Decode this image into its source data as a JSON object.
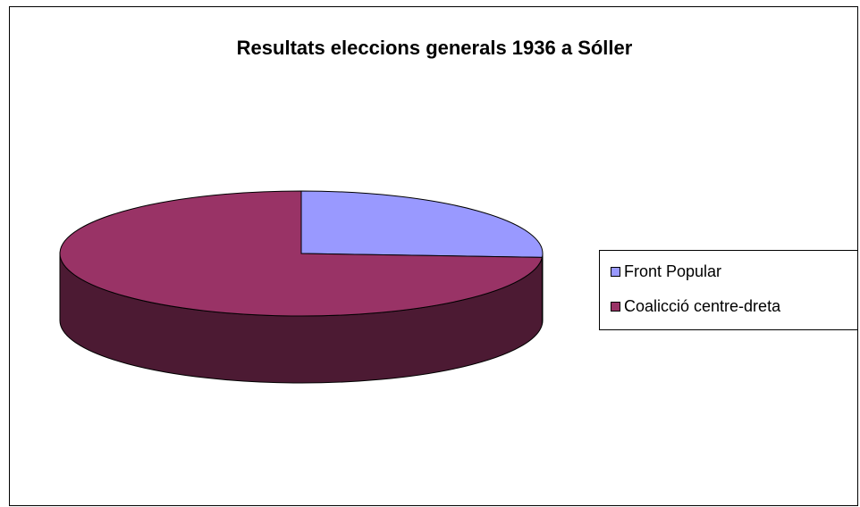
{
  "chart_data": {
    "type": "pie",
    "title": "Resultats eleccions generals 1936 a Sóller",
    "categories": [
      "Front Popular",
      "Coalicció centre-dreta"
    ],
    "values": [
      26,
      74
    ],
    "colors": [
      "#9999ff",
      "#993366"
    ],
    "side_colors": [
      "#4c4c80",
      "#4c1a33"
    ],
    "legend_position": "right",
    "three_d": true
  }
}
